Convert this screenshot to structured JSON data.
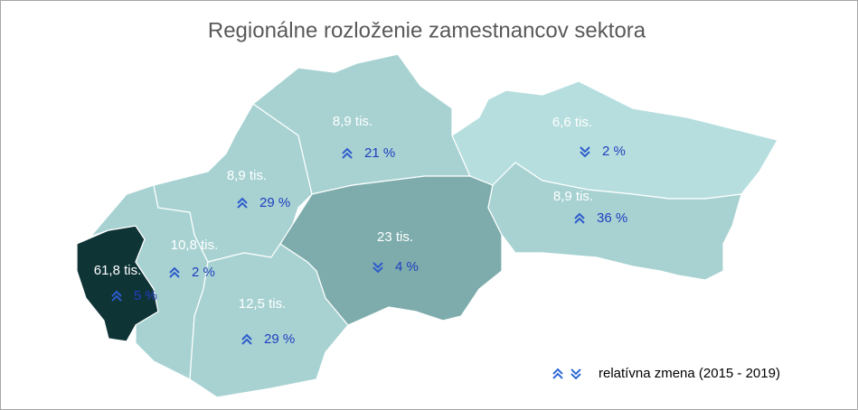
{
  "title": "Regionálne rozloženie zamestnancov sektora",
  "regions": [
    {
      "value": "61,8 tis.",
      "change": "5 %",
      "direction": "up",
      "color": "#0f3436"
    },
    {
      "value": "10,8 tis.",
      "change": "2 %",
      "direction": "up",
      "color": "#a8d2d2"
    },
    {
      "value": "8,9 tis.",
      "change": "29 %",
      "direction": "up",
      "color": "#a8d2d2"
    },
    {
      "value": "8,9 tis.",
      "change": "21 %",
      "direction": "up",
      "color": "#a8d2d2"
    },
    {
      "value": "12,5 tis.",
      "change": "29 %",
      "direction": "up",
      "color": "#a8d2d2"
    },
    {
      "value": "23 tis.",
      "change": "4 %",
      "direction": "down",
      "color": "#7eacac"
    },
    {
      "value": "6,6 tis.",
      "change": "2 %",
      "direction": "down",
      "color": "#b7dede"
    },
    {
      "value": "8,9 tis.",
      "change": "36 %",
      "direction": "up",
      "color": "#a8d2d2"
    }
  ],
  "legend": "relatívna zmena  (2015 - 2019)"
}
